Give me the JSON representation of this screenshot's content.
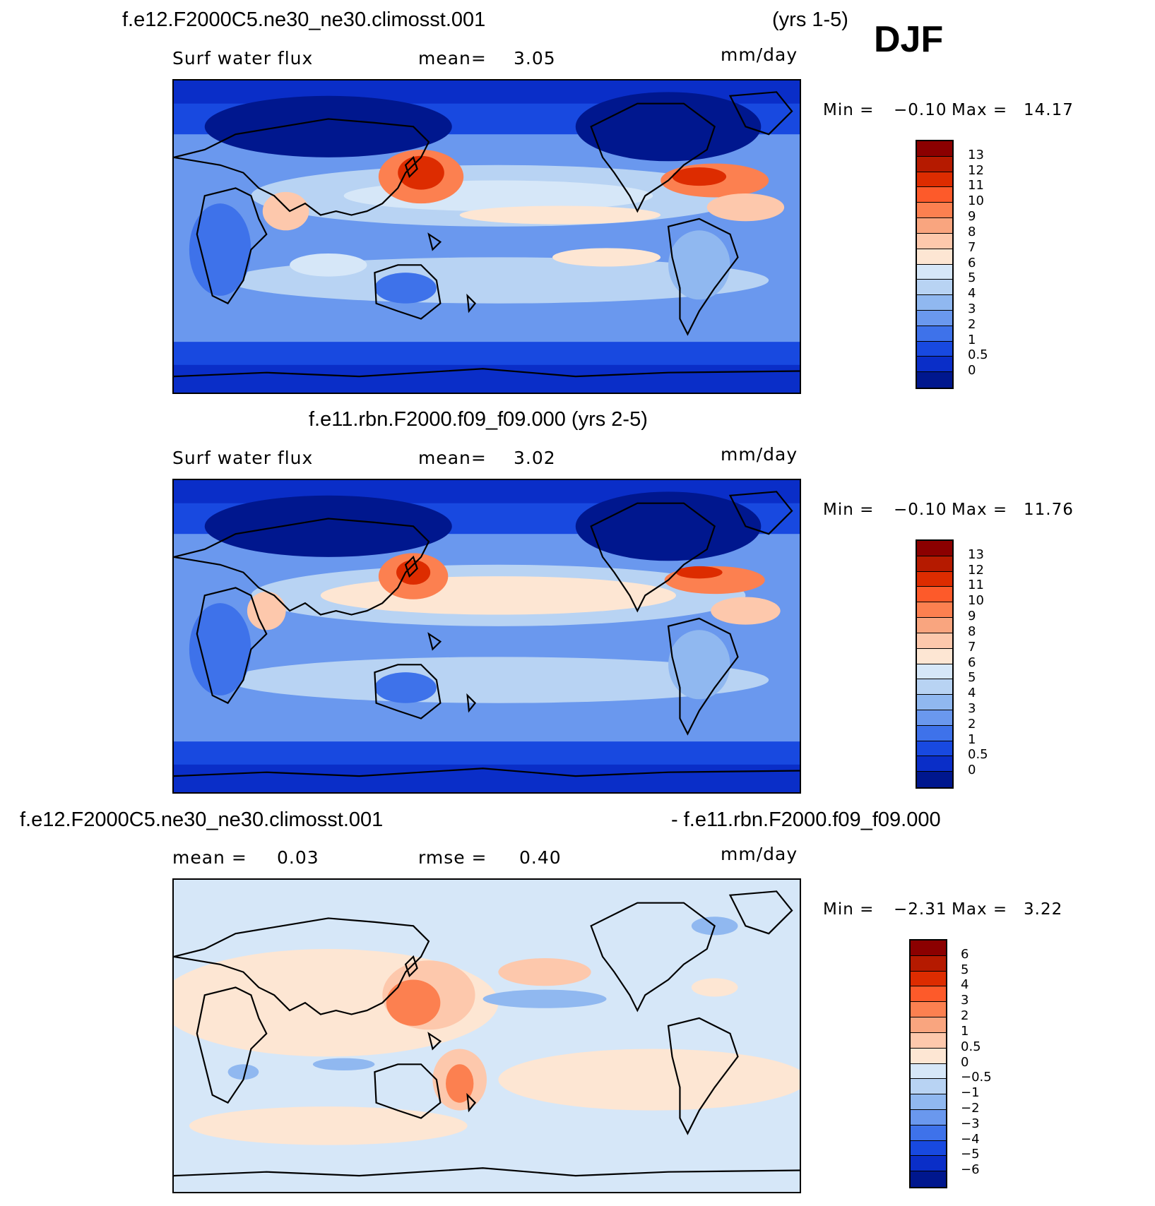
{
  "season": "DJF",
  "panel1": {
    "title": "f.e12.F2000C5.ne30_ne30.climosst.001",
    "years": "(yrs 1-5)",
    "variable": "Surf water flux",
    "stat_label": "mean=",
    "stat_value": "3.05",
    "units": "mm/day",
    "min_label": "Min =",
    "min_value": "−0.10",
    "max_label": "Max =",
    "max_value": "14.17"
  },
  "panel2": {
    "title": "f.e11.rbn.F2000.f09_f09.000 (yrs 2-5)",
    "variable": "Surf water flux",
    "stat_label": "mean=",
    "stat_value": "3.02",
    "units": "mm/day",
    "min_label": "Min =",
    "min_value": "−0.10",
    "max_label": "Max =",
    "max_value": "11.76"
  },
  "panel3": {
    "title_left": "f.e12.F2000C5.ne30_ne30.climosst.001",
    "title_right": "- f.e11.rbn.F2000.f09_f09.000",
    "mean_label": "mean =",
    "mean_value": "0.03",
    "rmse_label": "rmse =",
    "rmse_value": "0.40",
    "units": "mm/day",
    "min_label": "Min =",
    "min_value": "−2.31",
    "max_label": "Max =",
    "max_value": "3.22"
  },
  "colorbar_abs": {
    "levels": [
      "13",
      "12",
      "11",
      "10",
      "9",
      "8",
      "7",
      "6",
      "5",
      "4",
      "3",
      "2",
      "1",
      "0.5",
      "0"
    ],
    "colors": [
      "#8b0000",
      "#b51a00",
      "#dd2c00",
      "#fd5a2a",
      "#fc8050",
      "#f9a57f",
      "#fdc8ac",
      "#fde6d3",
      "#d6e7f8",
      "#b8d3f3",
      "#90b8f0",
      "#6a98ee",
      "#3e72ea",
      "#1849e0",
      "#0a2ec8",
      "#00178e"
    ]
  },
  "colorbar_diff": {
    "levels": [
      "6",
      "5",
      "4",
      "3",
      "2",
      "1",
      "0.5",
      "0",
      "−0.5",
      "−1",
      "−2",
      "−3",
      "−4",
      "−5",
      "−6"
    ],
    "colors": [
      "#8b0000",
      "#b51a00",
      "#dd2c00",
      "#fd5a2a",
      "#fc8050",
      "#f9a57f",
      "#fdc8ac",
      "#fde6d3",
      "#d6e7f8",
      "#b8d3f3",
      "#90b8f0",
      "#6a98ee",
      "#3e72ea",
      "#1849e0",
      "#0a2ec8",
      "#00178e"
    ]
  }
}
